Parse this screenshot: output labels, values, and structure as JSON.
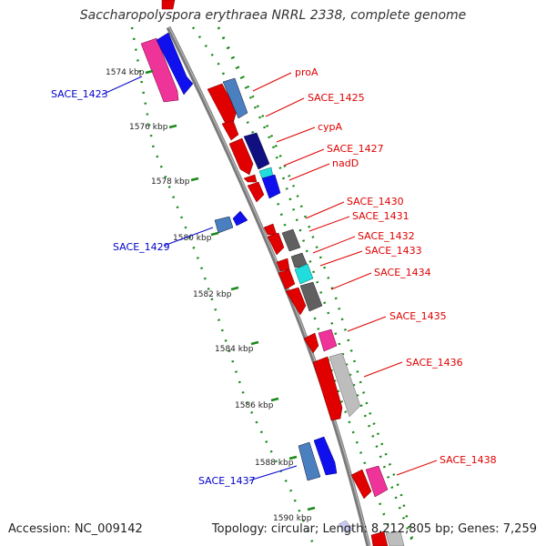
{
  "title": "Saccharopolyspora erythraea NRRL 2338, complete genome",
  "footer": {
    "accession": "Accession: NC_009142",
    "summary": "Topology: circular; Length: 8,212,805 bp; Genes: 7,259"
  },
  "colors": {
    "backbone": "#8a8a8a",
    "dots": "#1a8a1a",
    "label_red": "#e00000",
    "label_blue": "#0000cc"
  },
  "ticks": [
    "1574 kbp",
    "1576 kbp",
    "1578 kbp",
    "1580 kbp",
    "1582 kbp",
    "1584 kbp",
    "1586 kbp",
    "1588 kbp",
    "1590 kbp"
  ],
  "genes": [
    {
      "name": "proA",
      "color": "red"
    },
    {
      "name": "SACE_1425",
      "color": "red"
    },
    {
      "name": "cypA",
      "color": "red"
    },
    {
      "name": "SACE_1427",
      "color": "red"
    },
    {
      "name": "nadD",
      "color": "red"
    },
    {
      "name": "SACE_1430",
      "color": "red"
    },
    {
      "name": "SACE_1431",
      "color": "red"
    },
    {
      "name": "SACE_1432",
      "color": "red"
    },
    {
      "name": "SACE_1433",
      "color": "red"
    },
    {
      "name": "SACE_1434",
      "color": "red"
    },
    {
      "name": "SACE_1435",
      "color": "red"
    },
    {
      "name": "SACE_1436",
      "color": "red"
    },
    {
      "name": "SACE_1438",
      "color": "red"
    },
    {
      "name": "SACE_1423",
      "color": "blue"
    },
    {
      "name": "SACE_1429",
      "color": "blue"
    },
    {
      "name": "SACE_1437",
      "color": "blue"
    }
  ]
}
